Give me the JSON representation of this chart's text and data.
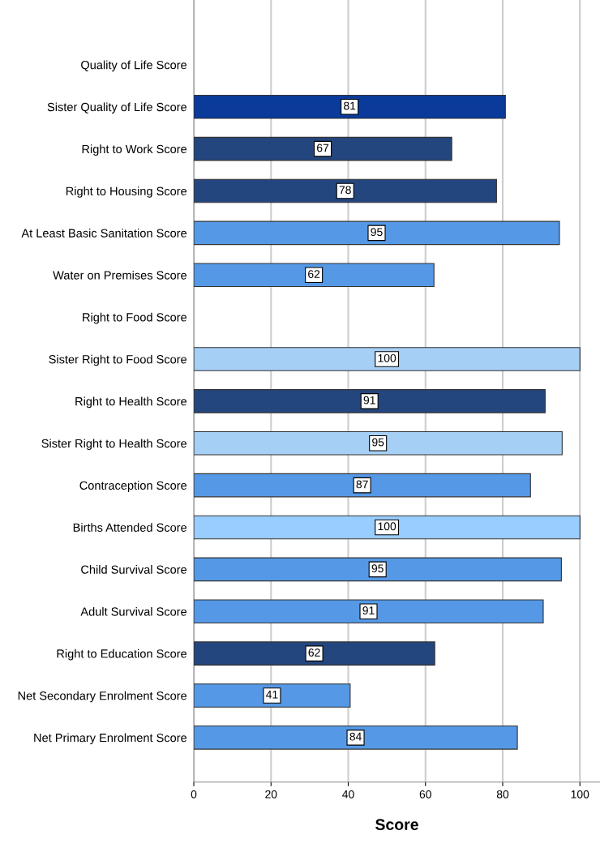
{
  "chart_data": {
    "type": "bar",
    "orientation": "horizontal",
    "xlabel": "Score",
    "categories": [
      "Quality of Life Score",
      "Sister Quality of Life Score",
      "Right to Work Score",
      "Right to Housing Score",
      "At Least Basic Sanitation Score",
      "Water on Premises Score",
      "Right to Food Score",
      "Sister Right to Food Score",
      "Right to Health Score",
      "Sister Right to Health Score",
      "Contraception Score",
      "Births Attended Score",
      "Child Survival Score",
      "Adult Survival Score",
      "Right to Education Score",
      "Net Secondary Enrolment Score",
      "Net Primary Enrolment Score"
    ],
    "values": [
      null,
      80.7,
      66.8,
      78.4,
      94.7,
      62.2,
      null,
      100,
      91.0,
      95.4,
      87.2,
      100,
      95.2,
      90.5,
      62.4,
      40.5,
      83.8
    ],
    "value_labels": [
      null,
      "81",
      "67",
      "78",
      "95",
      "62",
      null,
      "100",
      "91",
      "95",
      "87",
      "100",
      "95",
      "91",
      "62",
      "41",
      "84"
    ],
    "colors": [
      "#5599e6",
      "#0a3a9a",
      "#24467f",
      "#24467f",
      "#5599e6",
      "#5599e6",
      "#5599e6",
      "#a6cff5",
      "#24467f",
      "#a6cff5",
      "#5599e6",
      "#99ccff",
      "#5599e6",
      "#5599e6",
      "#24467f",
      "#5599e6",
      "#5599e6"
    ],
    "xlim": [
      0,
      105.2
    ],
    "xticks": [
      0,
      20,
      40,
      60,
      80,
      100
    ],
    "grid": "x"
  }
}
